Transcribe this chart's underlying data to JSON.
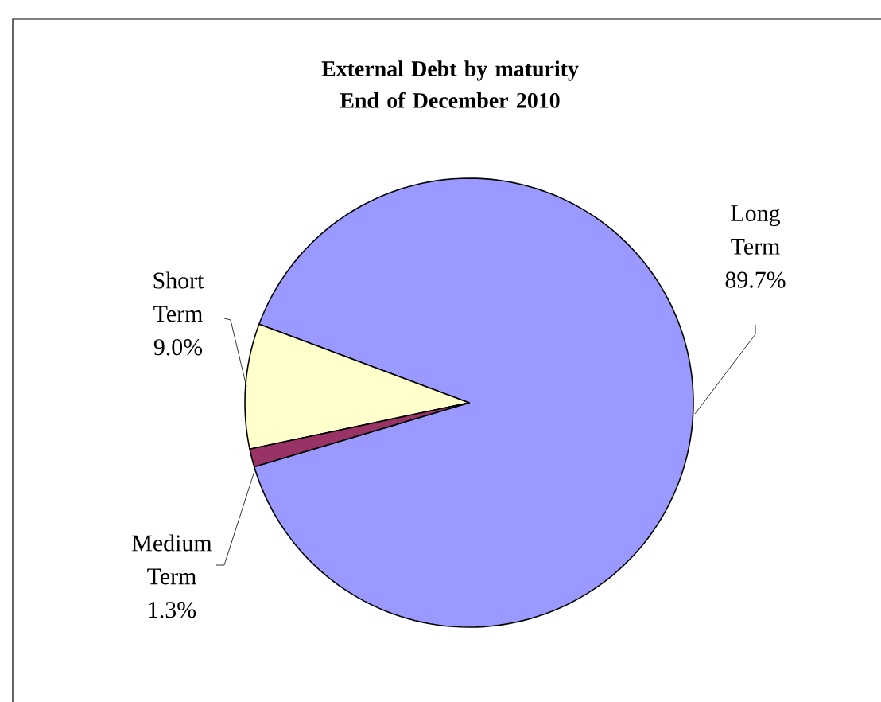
{
  "chart_data": {
    "type": "pie",
    "title": "External Debt by maturity End of December 2010",
    "categories": [
      "Long Term",
      "Short Term",
      "Medium Term"
    ],
    "values": [
      89.7,
      9.0,
      1.3
    ],
    "value_labels": [
      "89.7%",
      "9.0%",
      "1.3%"
    ],
    "colors": [
      "#9999ff",
      "#ffffcc",
      "#993366"
    ],
    "legend": false
  }
}
